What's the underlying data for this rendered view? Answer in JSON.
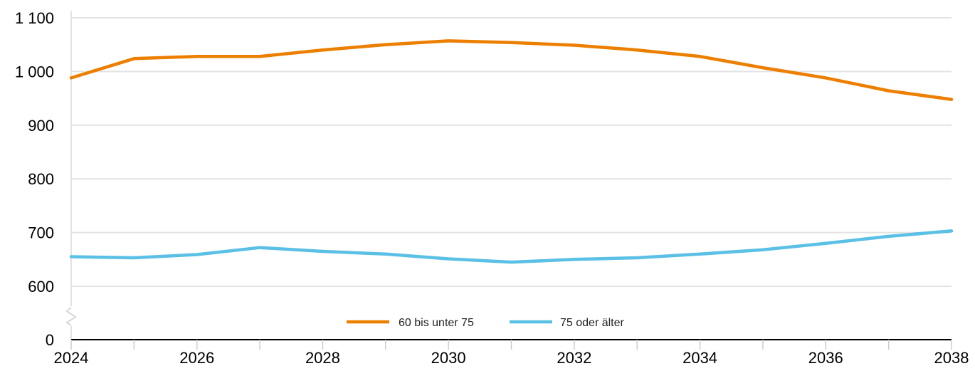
{
  "chart_data": {
    "type": "line",
    "title": "",
    "xlabel": "",
    "ylabel": "",
    "x": [
      2024,
      2025,
      2026,
      2027,
      2028,
      2029,
      2030,
      2031,
      2032,
      2033,
      2034,
      2035,
      2036,
      2037,
      2038
    ],
    "x_tick_labels": [
      "2024",
      "2026",
      "2028",
      "2030",
      "2032",
      "2034",
      "2036",
      "2038"
    ],
    "y_tick_labels": [
      "0",
      "600",
      "700",
      "800",
      "900",
      "1 000",
      "1 100"
    ],
    "y_axis_break": "between 0 and 600",
    "series": [
      {
        "name": "60 bis unter 75",
        "color": "#ec7f00",
        "values": [
          988,
          1024,
          1028,
          1028,
          1040,
          1050,
          1057,
          1054,
          1049,
          1040,
          1028,
          1007,
          988,
          964,
          948
        ]
      },
      {
        "name": "75 oder älter",
        "color": "#5bc0e5",
        "values": [
          655,
          653,
          659,
          672,
          665,
          660,
          651,
          645,
          650,
          653,
          660,
          668,
          680,
          693,
          703
        ]
      }
    ],
    "ylim": [
      600,
      1100
    ],
    "grid": true,
    "legend_position": "bottom-center"
  }
}
